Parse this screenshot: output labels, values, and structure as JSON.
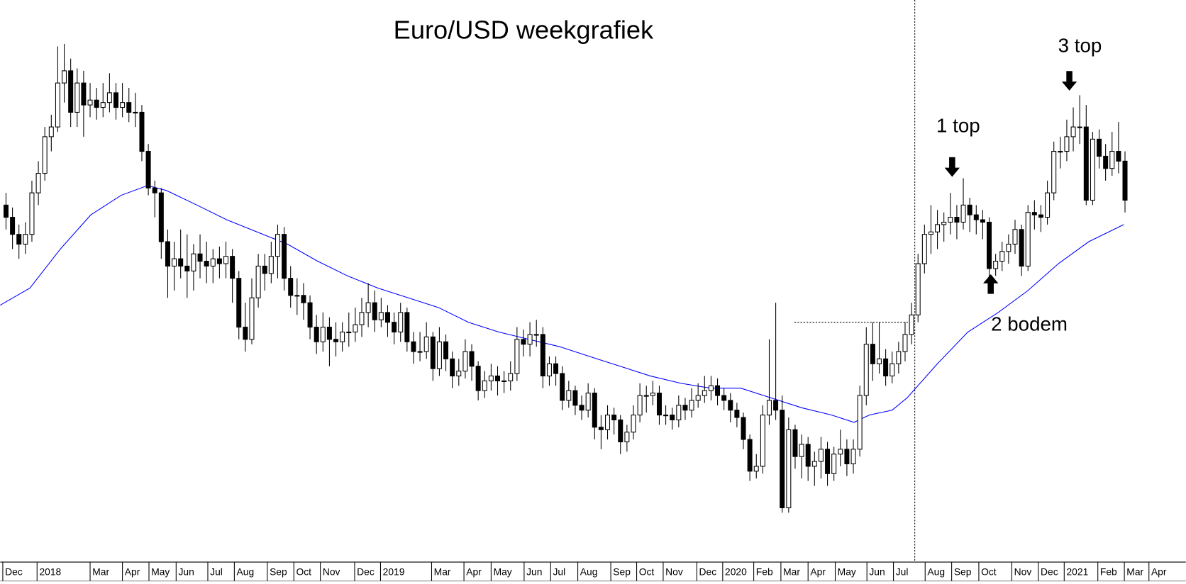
{
  "chart_data": {
    "type": "candlestick",
    "title": "Euro/USD weekgrafiek",
    "xlim": [
      -0.9,
      182.4
    ],
    "ylim": [
      1.045,
      1.274
    ],
    "xticks": [
      {
        "value": -0.5,
        "label": "Dec"
      },
      {
        "value": 4.8,
        "label": "2018"
      },
      {
        "value": 13.0,
        "label": "Mar"
      },
      {
        "value": 18.0,
        "label": "Apr"
      },
      {
        "value": 22.1,
        "label": "May"
      },
      {
        "value": 26.3,
        "label": "Jun"
      },
      {
        "value": 31.2,
        "label": "Jul"
      },
      {
        "value": 35.3,
        "label": "Aug"
      },
      {
        "value": 40.4,
        "label": "Sep"
      },
      {
        "value": 44.5,
        "label": "Oct"
      },
      {
        "value": 48.6,
        "label": "Nov"
      },
      {
        "value": 53.9,
        "label": "Dec"
      },
      {
        "value": 57.9,
        "label": "2019"
      },
      {
        "value": 65.8,
        "label": "Mar"
      },
      {
        "value": 70.8,
        "label": "Apr"
      },
      {
        "value": 75.0,
        "label": "May"
      },
      {
        "value": 80.1,
        "label": "Jun"
      },
      {
        "value": 84.2,
        "label": "Jul"
      },
      {
        "value": 88.4,
        "label": "Aug"
      },
      {
        "value": 93.5,
        "label": "Sep"
      },
      {
        "value": 97.5,
        "label": "Oct"
      },
      {
        "value": 101.6,
        "label": "Nov"
      },
      {
        "value": 106.8,
        "label": "Dec"
      },
      {
        "value": 110.8,
        "label": "2020"
      },
      {
        "value": 115.6,
        "label": "Feb"
      },
      {
        "value": 119.8,
        "label": "Mar"
      },
      {
        "value": 124.0,
        "label": "Apr"
      },
      {
        "value": 128.2,
        "label": "May"
      },
      {
        "value": 133.1,
        "label": "Jun"
      },
      {
        "value": 137.2,
        "label": "Jul"
      },
      {
        "value": 142.1,
        "label": "Aug"
      },
      {
        "value": 146.2,
        "label": "Sep"
      },
      {
        "value": 150.4,
        "label": "Oct"
      },
      {
        "value": 155.5,
        "label": "Nov"
      },
      {
        "value": 159.6,
        "label": "Dec"
      },
      {
        "value": 163.6,
        "label": "2021"
      },
      {
        "value": 168.8,
        "label": "Feb"
      },
      {
        "value": 172.9,
        "label": "Mar"
      },
      {
        "value": 176.7,
        "label": "Apr"
      }
    ],
    "ohlc": [
      [
        1.19,
        1.195,
        1.18,
        1.185
      ],
      [
        1.185,
        1.189,
        1.172,
        1.178
      ],
      [
        1.178,
        1.182,
        1.168,
        1.174
      ],
      [
        1.174,
        1.183,
        1.17,
        1.178
      ],
      [
        1.178,
        1.2,
        1.175,
        1.195
      ],
      [
        1.195,
        1.208,
        1.19,
        1.203
      ],
      [
        1.203,
        1.222,
        1.2,
        1.218
      ],
      [
        1.218,
        1.227,
        1.212,
        1.222
      ],
      [
        1.222,
        1.255,
        1.22,
        1.24
      ],
      [
        1.24,
        1.256,
        1.232,
        1.245
      ],
      [
        1.245,
        1.25,
        1.222,
        1.228
      ],
      [
        1.228,
        1.246,
        1.222,
        1.24
      ],
      [
        1.24,
        1.245,
        1.218,
        1.231
      ],
      [
        1.231,
        1.24,
        1.226,
        1.233
      ],
      [
        1.233,
        1.238,
        1.225,
        1.23
      ],
      [
        1.23,
        1.24,
        1.226,
        1.232
      ],
      [
        1.232,
        1.244,
        1.228,
        1.236
      ],
      [
        1.236,
        1.24,
        1.225,
        1.23
      ],
      [
        1.23,
        1.24,
        1.226,
        1.232
      ],
      [
        1.232,
        1.238,
        1.224,
        1.228
      ],
      [
        1.228,
        1.236,
        1.222,
        1.228
      ],
      [
        1.228,
        1.231,
        1.208,
        1.212
      ],
      [
        1.212,
        1.215,
        1.194,
        1.197
      ],
      [
        1.197,
        1.2,
        1.185,
        1.195
      ],
      [
        1.195,
        1.197,
        1.168,
        1.175
      ],
      [
        1.175,
        1.18,
        1.152,
        1.165
      ],
      [
        1.165,
        1.175,
        1.155,
        1.168
      ],
      [
        1.168,
        1.18,
        1.16,
        1.165
      ],
      [
        1.165,
        1.178,
        1.152,
        1.163
      ],
      [
        1.163,
        1.174,
        1.155,
        1.17
      ],
      [
        1.17,
        1.178,
        1.16,
        1.167
      ],
      [
        1.167,
        1.175,
        1.158,
        1.165
      ],
      [
        1.165,
        1.172,
        1.158,
        1.168
      ],
      [
        1.168,
        1.173,
        1.16,
        1.166
      ],
      [
        1.166,
        1.175,
        1.16,
        1.169
      ],
      [
        1.169,
        1.172,
        1.15,
        1.16
      ],
      [
        1.16,
        1.163,
        1.135,
        1.14
      ],
      [
        1.14,
        1.15,
        1.13,
        1.135
      ],
      [
        1.135,
        1.16,
        1.133,
        1.152
      ],
      [
        1.152,
        1.17,
        1.148,
        1.165
      ],
      [
        1.165,
        1.17,
        1.155,
        1.162
      ],
      [
        1.162,
        1.175,
        1.158,
        1.169
      ],
      [
        1.169,
        1.182,
        1.16,
        1.178
      ],
      [
        1.178,
        1.181,
        1.155,
        1.16
      ],
      [
        1.16,
        1.165,
        1.148,
        1.153
      ],
      [
        1.153,
        1.16,
        1.145,
        1.153
      ],
      [
        1.153,
        1.158,
        1.143,
        1.15
      ],
      [
        1.15,
        1.153,
        1.135,
        1.14
      ],
      [
        1.14,
        1.145,
        1.129,
        1.134
      ],
      [
        1.134,
        1.146,
        1.13,
        1.14
      ],
      [
        1.14,
        1.144,
        1.124,
        1.135
      ],
      [
        1.135,
        1.142,
        1.128,
        1.134
      ],
      [
        1.134,
        1.142,
        1.13,
        1.138
      ],
      [
        1.138,
        1.146,
        1.132,
        1.138
      ],
      [
        1.138,
        1.148,
        1.134,
        1.141
      ],
      [
        1.141,
        1.152,
        1.136,
        1.146
      ],
      [
        1.146,
        1.158,
        1.14,
        1.15
      ],
      [
        1.15,
        1.155,
        1.138,
        1.143
      ],
      [
        1.143,
        1.152,
        1.14,
        1.146
      ],
      [
        1.146,
        1.149,
        1.136,
        1.142
      ],
      [
        1.142,
        1.146,
        1.133,
        1.138
      ],
      [
        1.138,
        1.15,
        1.134,
        1.146
      ],
      [
        1.146,
        1.148,
        1.13,
        1.134
      ],
      [
        1.134,
        1.138,
        1.125,
        1.13
      ],
      [
        1.13,
        1.138,
        1.126,
        1.13
      ],
      [
        1.13,
        1.142,
        1.127,
        1.136
      ],
      [
        1.136,
        1.138,
        1.118,
        1.123
      ],
      [
        1.123,
        1.14,
        1.12,
        1.134
      ],
      [
        1.134,
        1.137,
        1.122,
        1.127
      ],
      [
        1.127,
        1.13,
        1.115,
        1.12
      ],
      [
        1.12,
        1.127,
        1.116,
        1.122
      ],
      [
        1.122,
        1.135,
        1.119,
        1.13
      ],
      [
        1.13,
        1.133,
        1.118,
        1.124
      ],
      [
        1.124,
        1.126,
        1.11,
        1.114
      ],
      [
        1.114,
        1.122,
        1.111,
        1.118
      ],
      [
        1.118,
        1.125,
        1.114,
        1.12
      ],
      [
        1.12,
        1.124,
        1.112,
        1.118
      ],
      [
        1.118,
        1.122,
        1.113,
        1.118
      ],
      [
        1.118,
        1.126,
        1.114,
        1.121
      ],
      [
        1.121,
        1.14,
        1.118,
        1.135
      ],
      [
        1.135,
        1.139,
        1.128,
        1.133
      ],
      [
        1.133,
        1.142,
        1.128,
        1.137
      ],
      [
        1.137,
        1.143,
        1.132,
        1.137
      ],
      [
        1.137,
        1.14,
        1.115,
        1.12
      ],
      [
        1.12,
        1.128,
        1.116,
        1.125
      ],
      [
        1.125,
        1.128,
        1.116,
        1.121
      ],
      [
        1.121,
        1.124,
        1.106,
        1.11
      ],
      [
        1.11,
        1.118,
        1.107,
        1.114
      ],
      [
        1.114,
        1.116,
        1.104,
        1.108
      ],
      [
        1.108,
        1.112,
        1.102,
        1.106
      ],
      [
        1.106,
        1.117,
        1.103,
        1.113
      ],
      [
        1.113,
        1.115,
        1.094,
        1.099
      ],
      [
        1.099,
        1.104,
        1.09,
        1.098
      ],
      [
        1.098,
        1.108,
        1.094,
        1.104
      ],
      [
        1.104,
        1.107,
        1.096,
        1.102
      ],
      [
        1.102,
        1.104,
        1.088,
        1.093
      ],
      [
        1.093,
        1.1,
        1.089,
        1.097
      ],
      [
        1.097,
        1.108,
        1.094,
        1.104
      ],
      [
        1.104,
        1.117,
        1.101,
        1.112
      ],
      [
        1.112,
        1.116,
        1.105,
        1.112
      ],
      [
        1.112,
        1.118,
        1.108,
        1.113
      ],
      [
        1.113,
        1.116,
        1.1,
        1.104
      ],
      [
        1.104,
        1.108,
        1.1,
        1.104
      ],
      [
        1.104,
        1.107,
        1.098,
        1.102
      ],
      [
        1.102,
        1.112,
        1.099,
        1.108
      ],
      [
        1.108,
        1.111,
        1.102,
        1.106
      ],
      [
        1.106,
        1.115,
        1.103,
        1.11
      ],
      [
        1.11,
        1.117,
        1.107,
        1.112
      ],
      [
        1.112,
        1.12,
        1.109,
        1.114
      ],
      [
        1.114,
        1.12,
        1.11,
        1.116
      ],
      [
        1.116,
        1.119,
        1.108,
        1.112
      ],
      [
        1.112,
        1.115,
        1.106,
        1.11
      ],
      [
        1.11,
        1.113,
        1.101,
        1.106
      ],
      [
        1.106,
        1.109,
        1.099,
        1.103
      ],
      [
        1.103,
        1.105,
        1.09,
        1.094
      ],
      [
        1.094,
        1.096,
        1.077,
        1.081
      ],
      [
        1.081,
        1.088,
        1.078,
        1.083
      ],
      [
        1.083,
        1.108,
        1.08,
        1.104
      ],
      [
        1.104,
        1.135,
        1.1,
        1.11
      ],
      [
        1.11,
        1.15,
        1.102,
        1.106
      ],
      [
        1.106,
        1.112,
        1.064,
        1.066
      ],
      [
        1.066,
        1.103,
        1.064,
        1.098
      ],
      [
        1.098,
        1.1,
        1.082,
        1.087
      ],
      [
        1.087,
        1.096,
        1.078,
        1.092
      ],
      [
        1.092,
        1.095,
        1.077,
        1.083
      ],
      [
        1.083,
        1.089,
        1.075,
        1.085
      ],
      [
        1.085,
        1.095,
        1.078,
        1.09
      ],
      [
        1.09,
        1.093,
        1.075,
        1.08
      ],
      [
        1.08,
        1.091,
        1.077,
        1.088
      ],
      [
        1.088,
        1.098,
        1.083,
        1.09
      ],
      [
        1.09,
        1.094,
        1.079,
        1.084
      ],
      [
        1.084,
        1.094,
        1.08,
        1.09
      ],
      [
        1.09,
        1.116,
        1.087,
        1.112
      ],
      [
        1.112,
        1.14,
        1.108,
        1.133
      ],
      [
        1.133,
        1.142,
        1.118,
        1.125
      ],
      [
        1.125,
        1.142,
        1.121,
        1.127
      ],
      [
        1.127,
        1.131,
        1.116,
        1.12
      ],
      [
        1.12,
        1.13,
        1.117,
        1.125
      ],
      [
        1.125,
        1.134,
        1.121,
        1.13
      ],
      [
        1.13,
        1.142,
        1.126,
        1.137
      ],
      [
        1.137,
        1.15,
        1.133,
        1.145
      ],
      [
        1.145,
        1.17,
        1.142,
        1.166
      ],
      [
        1.166,
        1.182,
        1.162,
        1.178
      ],
      [
        1.178,
        1.19,
        1.17,
        1.179
      ],
      [
        1.179,
        1.188,
        1.172,
        1.182
      ],
      [
        1.182,
        1.187,
        1.175,
        1.183
      ],
      [
        1.183,
        1.195,
        1.178,
        1.185
      ],
      [
        1.185,
        1.19,
        1.176,
        1.183
      ],
      [
        1.183,
        1.201,
        1.18,
        1.19
      ],
      [
        1.19,
        1.193,
        1.179,
        1.186
      ],
      [
        1.186,
        1.19,
        1.178,
        1.184
      ],
      [
        1.184,
        1.188,
        1.176,
        1.183
      ],
      [
        1.183,
        1.185,
        1.16,
        1.164
      ],
      [
        1.164,
        1.17,
        1.161,
        1.167
      ],
      [
        1.167,
        1.175,
        1.163,
        1.171
      ],
      [
        1.171,
        1.178,
        1.166,
        1.174
      ],
      [
        1.174,
        1.184,
        1.17,
        1.18
      ],
      [
        1.18,
        1.182,
        1.161,
        1.165
      ],
      [
        1.165,
        1.19,
        1.163,
        1.187
      ],
      [
        1.187,
        1.192,
        1.18,
        1.186
      ],
      [
        1.186,
        1.19,
        1.179,
        1.185
      ],
      [
        1.185,
        1.2,
        1.182,
        1.195
      ],
      [
        1.195,
        1.216,
        1.192,
        1.212
      ],
      [
        1.212,
        1.218,
        1.205,
        1.212
      ],
      [
        1.212,
        1.225,
        1.208,
        1.218
      ],
      [
        1.218,
        1.23,
        1.212,
        1.222
      ],
      [
        1.222,
        1.235,
        1.215,
        1.222
      ],
      [
        1.222,
        1.231,
        1.19,
        1.192
      ],
      [
        1.192,
        1.22,
        1.19,
        1.217
      ],
      [
        1.217,
        1.221,
        1.205,
        1.21
      ],
      [
        1.21,
        1.215,
        1.2,
        1.205
      ],
      [
        1.205,
        1.22,
        1.202,
        1.212
      ],
      [
        1.212,
        1.224,
        1.203,
        1.208
      ],
      [
        1.208,
        1.212,
        1.187,
        1.192
      ]
    ],
    "moving_average": {
      "color": "#0000ff",
      "x": [
        -0.9,
        3.7,
        8.4,
        13.1,
        17.8,
        21.9,
        24.8,
        29.5,
        34.1,
        38.8,
        43.5,
        48.2,
        52.8,
        57.5,
        62.2,
        66.9,
        71.5,
        76.2,
        80.9,
        85.6,
        90.2,
        94.9,
        99.6,
        104.3,
        108.9,
        113.6,
        118.3,
        123.0,
        127.6,
        131.1,
        133.5,
        137.0,
        139.3,
        144.0,
        148.7,
        153.4,
        158.0,
        162.7,
        167.4,
        172.8
      ],
      "values": [
        1.149,
        1.156,
        1.172,
        1.186,
        1.194,
        1.198,
        1.196,
        1.19,
        1.184,
        1.179,
        1.174,
        1.167,
        1.161,
        1.156,
        1.152,
        1.148,
        1.142,
        1.138,
        1.135,
        1.132,
        1.128,
        1.124,
        1.12,
        1.117,
        1.115,
        1.115,
        1.111,
        1.107,
        1.104,
        1.101,
        1.104,
        1.106,
        1.111,
        1.125,
        1.138,
        1.146,
        1.155,
        1.166,
        1.175,
        1.182
      ]
    },
    "hline": {
      "y": 1.142,
      "x": [
        121.9,
        140.5
      ]
    },
    "vline": 140.5,
    "annotations": [
      "1 top",
      "2 bodem",
      "3 top"
    ]
  }
}
